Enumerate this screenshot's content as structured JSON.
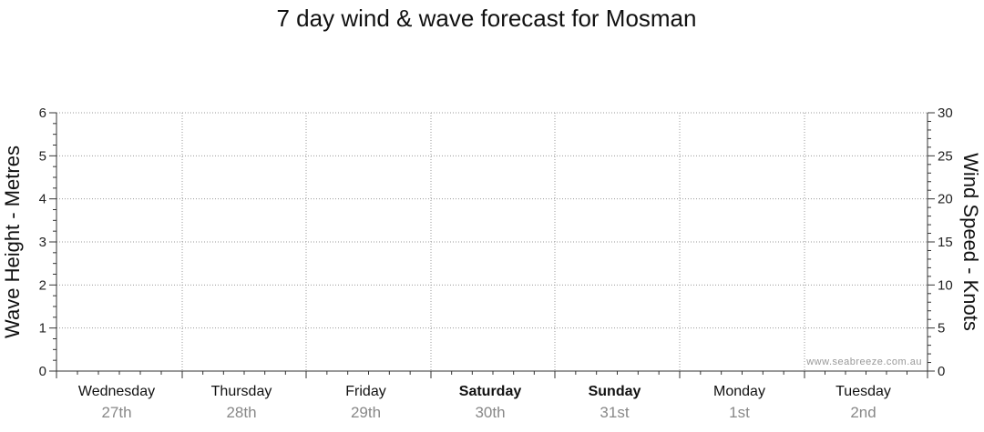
{
  "chart_data": {
    "type": "line",
    "title": "7 day wind & wave forecast for Mosman",
    "y_left": {
      "label": "Wave Height - Metres",
      "ticks": [
        "0",
        "1",
        "2",
        "3",
        "4",
        "5",
        "6"
      ],
      "range": [
        0,
        6
      ]
    },
    "y_right": {
      "label": "Wind Speed - Knots",
      "ticks": [
        "0",
        "5",
        "10",
        "15",
        "20",
        "25",
        "30"
      ],
      "range": [
        0,
        30
      ]
    },
    "days": [
      {
        "name": "Wednesday",
        "date": "27th",
        "bold": false
      },
      {
        "name": "Thursday",
        "date": "28th",
        "bold": false
      },
      {
        "name": "Friday",
        "date": "29th",
        "bold": false
      },
      {
        "name": "Saturday",
        "date": "30th",
        "bold": true
      },
      {
        "name": "Sunday",
        "date": "31st",
        "bold": true
      },
      {
        "name": "Monday",
        "date": "1st",
        "bold": false
      },
      {
        "name": "Tuesday",
        "date": "2nd",
        "bold": false
      }
    ],
    "series": [],
    "grid": true,
    "watermark": "www.seabreeze.com.au"
  },
  "colors": {
    "grid": "#9a9a9a",
    "axis": "#333333"
  }
}
